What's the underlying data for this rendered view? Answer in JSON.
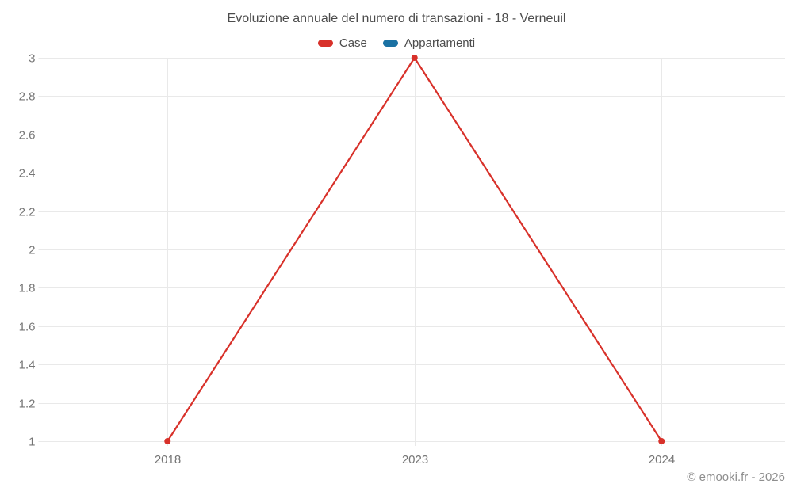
{
  "title": "Evoluzione annuale del numero di transazioni - 18 - Verneuil",
  "legend": [
    {
      "label": "Case",
      "color": "#d8312a"
    },
    {
      "label": "Appartamenti",
      "color": "#1a71a3"
    }
  ],
  "copyright": "© emooki.fr - 2026",
  "colors": {
    "grid": "#e9e9e9",
    "axis_line": "#dcdcdc",
    "tick_label": "#757575",
    "title_text": "#4c4c4c",
    "series_case": "#d8312a",
    "series_appartamenti": "#1a71a3",
    "background": "#ffffff"
  },
  "chart_data": {
    "type": "line",
    "title": "Evoluzione annuale del numero di transazioni - 18 - Verneuil",
    "categories": [
      "2018",
      "2023",
      "2024"
    ],
    "series": [
      {
        "name": "Case",
        "color": "#d8312a",
        "values": [
          1,
          3,
          1
        ]
      },
      {
        "name": "Appartamenti",
        "color": "#1a71a3",
        "values": []
      }
    ],
    "xlabel": "",
    "ylabel": "",
    "ylim": [
      1,
      3
    ],
    "yticks": [
      1,
      1.2,
      1.4,
      1.6,
      1.8,
      2,
      2.2,
      2.4,
      2.6,
      2.8,
      3
    ],
    "grid": true,
    "legend_position": "top",
    "marker": "circle"
  }
}
